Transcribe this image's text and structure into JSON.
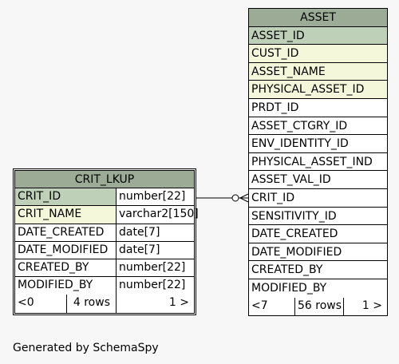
{
  "asset": {
    "title": "ASSET",
    "columns": [
      {
        "name": "ASSET_ID",
        "kind": "pk"
      },
      {
        "name": "CUST_ID",
        "kind": "fk"
      },
      {
        "name": "ASSET_NAME",
        "kind": "fk"
      },
      {
        "name": "PHYSICAL_ASSET_ID",
        "kind": "fk"
      },
      {
        "name": "PRDT_ID",
        "kind": "plain"
      },
      {
        "name": "ASSET_CTGRY_ID",
        "kind": "plain"
      },
      {
        "name": "ENV_IDENTITY_ID",
        "kind": "plain"
      },
      {
        "name": "PHYSICAL_ASSET_IND",
        "kind": "plain"
      },
      {
        "name": "ASSET_VAL_ID",
        "kind": "plain"
      },
      {
        "name": "CRIT_ID",
        "kind": "plain"
      },
      {
        "name": "SENSITIVITY_ID",
        "kind": "plain"
      },
      {
        "name": "DATE_CREATED",
        "kind": "plain"
      },
      {
        "name": "DATE_MODIFIED",
        "kind": "plain"
      },
      {
        "name": "CREATED_BY",
        "kind": "plain"
      },
      {
        "name": "MODIFIED_BY",
        "kind": "plain"
      }
    ],
    "footer": {
      "left": "<7",
      "middle": "56 rows",
      "right": "1 >"
    }
  },
  "crit_lkup": {
    "title": "CRIT_LKUP",
    "columns": [
      {
        "name": "CRIT_ID",
        "type": "number[22]",
        "kind": "pk"
      },
      {
        "name": "CRIT_NAME",
        "type": "varchar2[150]",
        "kind": "fk"
      },
      {
        "name": "DATE_CREATED",
        "type": "date[7]",
        "kind": "plain"
      },
      {
        "name": "DATE_MODIFIED",
        "type": "date[7]",
        "kind": "plain"
      },
      {
        "name": "CREATED_BY",
        "type": "number[22]",
        "kind": "plain"
      },
      {
        "name": "MODIFIED_BY",
        "type": "number[22]",
        "kind": "plain"
      }
    ],
    "footer": {
      "left": "<0",
      "middle": "4 rows",
      "right": "1 >"
    }
  },
  "generated_by": "Generated by SchemaSpy",
  "colors": {
    "header": "#9bab96",
    "primary_key": "#bed1b8",
    "key_column": "#f4f7da"
  }
}
